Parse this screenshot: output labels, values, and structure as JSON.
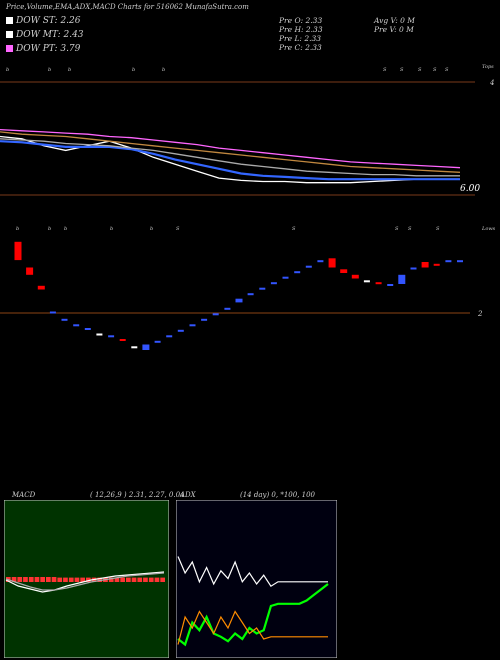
{
  "header": {
    "title": "Price,Volume,EMA,ADX,MACD Charts for 516062  MunafaSutra.com",
    "dow": [
      {
        "label": "DOW ST: 2.26",
        "color": "#ffffff"
      },
      {
        "label": "DOW MT: 2.43",
        "color": "#ffffff"
      },
      {
        "label": "DOW PT: 3.79",
        "color": "#ff66ff"
      }
    ],
    "prev": [
      "Pre  O: 2.33",
      "Pre  H: 2.33",
      "Pre  L: 2.33",
      "Pre  C: 2.33"
    ],
    "vol": [
      "Avg V: 0  M",
      "Pre  V: 0  M"
    ]
  },
  "chart_data": [
    {
      "type": "line",
      "name": "ema-panel",
      "tick_labels": {
        "top": "4",
        "bottom": "6.00",
        "right_tag": "Tops"
      },
      "top_markers": [
        "b",
        "b",
        "b",
        "b",
        "b",
        "S",
        "S",
        "S",
        "S",
        "S"
      ],
      "series": [
        {
          "color": "#ffffff",
          "values": [
            2.7,
            2.68,
            2.62,
            2.58,
            2.62,
            2.66,
            2.6,
            2.52,
            2.46,
            2.4,
            2.34,
            2.32,
            2.31,
            2.31,
            2.3,
            2.3,
            2.3,
            2.31,
            2.32,
            2.33,
            2.33,
            2.33
          ]
        },
        {
          "color": "#3366ff",
          "values": [
            2.66,
            2.65,
            2.63,
            2.61,
            2.61,
            2.61,
            2.59,
            2.55,
            2.5,
            2.46,
            2.42,
            2.38,
            2.36,
            2.35,
            2.34,
            2.33,
            2.33,
            2.33,
            2.33,
            2.33,
            2.33,
            2.33
          ]
        },
        {
          "color": "#ff66ff",
          "values": [
            2.76,
            2.75,
            2.74,
            2.73,
            2.72,
            2.7,
            2.69,
            2.67,
            2.65,
            2.63,
            2.6,
            2.58,
            2.56,
            2.54,
            2.52,
            2.5,
            2.48,
            2.47,
            2.46,
            2.45,
            2.44,
            2.43
          ]
        },
        {
          "color": "#c0873f",
          "values": [
            2.74,
            2.72,
            2.71,
            2.7,
            2.68,
            2.66,
            2.64,
            2.62,
            2.6,
            2.58,
            2.56,
            2.54,
            2.52,
            2.5,
            2.48,
            2.46,
            2.44,
            2.43,
            2.42,
            2.41,
            2.4,
            2.39
          ]
        },
        {
          "color": "#aaaaaa",
          "values": [
            2.68,
            2.67,
            2.66,
            2.64,
            2.63,
            2.62,
            2.6,
            2.58,
            2.55,
            2.52,
            2.49,
            2.46,
            2.44,
            2.42,
            2.4,
            2.39,
            2.38,
            2.37,
            2.37,
            2.36,
            2.36,
            2.36
          ]
        }
      ]
    },
    {
      "type": "candlestick",
      "name": "price-panel",
      "tick_labels": {
        "mid": "2",
        "right_tag": "Lows"
      },
      "reference_line": 2.35,
      "candles": [
        {
          "o": 2.76,
          "c": 2.66,
          "color": "#ff0000"
        },
        {
          "o": 2.62,
          "c": 2.58,
          "color": "#ff0000"
        },
        {
          "o": 2.52,
          "c": 2.5,
          "color": "#ff0000"
        },
        {
          "o": 2.38,
          "c": 2.38,
          "color": "#3355ff"
        },
        {
          "o": 2.34,
          "c": 2.34,
          "color": "#3355ff"
        },
        {
          "o": 2.31,
          "c": 2.31,
          "color": "#3355ff"
        },
        {
          "o": 2.29,
          "c": 2.29,
          "color": "#3355ff"
        },
        {
          "o": 2.26,
          "c": 2.26,
          "color": "#ffffff"
        },
        {
          "o": 2.25,
          "c": 2.25,
          "color": "#3355ff"
        },
        {
          "o": 2.23,
          "c": 2.22,
          "color": "#ff0000"
        },
        {
          "o": 2.19,
          "c": 2.19,
          "color": "#ffffff"
        },
        {
          "o": 2.17,
          "c": 2.2,
          "color": "#3355ff"
        },
        {
          "o": 2.22,
          "c": 2.22,
          "color": "#3355ff"
        },
        {
          "o": 2.25,
          "c": 2.25,
          "color": "#3355ff"
        },
        {
          "o": 2.28,
          "c": 2.28,
          "color": "#3355ff"
        },
        {
          "o": 2.31,
          "c": 2.31,
          "color": "#3355ff"
        },
        {
          "o": 2.34,
          "c": 2.34,
          "color": "#3355ff"
        },
        {
          "o": 2.37,
          "c": 2.37,
          "color": "#3355ff"
        },
        {
          "o": 2.4,
          "c": 2.4,
          "color": "#3355ff"
        },
        {
          "o": 2.43,
          "c": 2.45,
          "color": "#3355ff"
        },
        {
          "o": 2.48,
          "c": 2.48,
          "color": "#3355ff"
        },
        {
          "o": 2.51,
          "c": 2.51,
          "color": "#3355ff"
        },
        {
          "o": 2.54,
          "c": 2.54,
          "color": "#3355ff"
        },
        {
          "o": 2.57,
          "c": 2.57,
          "color": "#3355ff"
        },
        {
          "o": 2.6,
          "c": 2.6,
          "color": "#3355ff"
        },
        {
          "o": 2.63,
          "c": 2.63,
          "color": "#3355ff"
        },
        {
          "o": 2.66,
          "c": 2.66,
          "color": "#3355ff"
        },
        {
          "o": 2.67,
          "c": 2.62,
          "color": "#ff0000"
        },
        {
          "o": 2.61,
          "c": 2.59,
          "color": "#ff0000"
        },
        {
          "o": 2.58,
          "c": 2.56,
          "color": "#ff0000"
        },
        {
          "o": 2.55,
          "c": 2.55,
          "color": "#ffffff"
        },
        {
          "o": 2.54,
          "c": 2.53,
          "color": "#ff0000"
        },
        {
          "o": 2.53,
          "c": 2.53,
          "color": "#3355ff"
        },
        {
          "o": 2.53,
          "c": 2.58,
          "color": "#3355ff"
        },
        {
          "o": 2.61,
          "c": 2.62,
          "color": "#3355ff"
        },
        {
          "o": 2.65,
          "c": 2.62,
          "color": "#ff0000"
        },
        {
          "o": 2.64,
          "c": 2.63,
          "color": "#ff0000"
        },
        {
          "o": 2.66,
          "c": 2.66,
          "color": "#3355ff"
        },
        {
          "o": 2.66,
          "c": 2.66,
          "color": "#3355ff"
        }
      ]
    },
    {
      "type": "line",
      "name": "macd-panel",
      "title": "MACD",
      "params": "( 12,26,9 ) 2.31,  2.27,  0.04",
      "histogram_values": [
        0.05,
        0.05,
        0.05,
        0.05,
        0.05,
        0.05,
        0.05,
        0.05,
        0.05,
        0.04,
        0.04,
        0.04,
        0.04,
        0.04,
        0.04,
        0.04,
        0.04,
        0.04,
        0.04,
        0.04,
        0.04,
        0.04,
        0.04,
        0.04,
        0.04,
        0.04,
        0.04,
        0.04
      ],
      "series": [
        {
          "color": "#ffffff",
          "values": [
            0.0,
            -0.6,
            -0.9,
            -1.2,
            -1.0,
            -0.6,
            -0.3,
            0.0,
            0.2,
            0.4,
            0.5,
            0.6,
            0.7,
            0.8
          ]
        },
        {
          "color": "#aaaaaa",
          "values": [
            0.1,
            -0.3,
            -0.7,
            -1.0,
            -1.0,
            -0.8,
            -0.5,
            -0.2,
            0.0,
            0.2,
            0.4,
            0.5,
            0.6,
            0.7
          ]
        }
      ]
    },
    {
      "type": "line",
      "name": "adx-panel",
      "title": "ADX",
      "params": "(14  day) 0,  *100,  100",
      "series": [
        {
          "color": "#ffffff",
          "values": [
            85,
            70,
            80,
            62,
            75,
            60,
            72,
            65,
            80,
            62,
            70,
            60,
            68,
            58,
            62,
            62,
            62,
            62,
            62,
            62,
            62,
            62
          ]
        },
        {
          "color": "#00ff00",
          "values": [
            10,
            5,
            25,
            18,
            30,
            15,
            12,
            8,
            15,
            10,
            20,
            15,
            18,
            40,
            42,
            42,
            42,
            42,
            45,
            50,
            55,
            60
          ]
        },
        {
          "color": "#ff8c00",
          "values": [
            5,
            30,
            20,
            35,
            25,
            15,
            30,
            20,
            35,
            25,
            15,
            20,
            10,
            12,
            12,
            12,
            12,
            12,
            12,
            12,
            12,
            12
          ]
        }
      ]
    }
  ]
}
